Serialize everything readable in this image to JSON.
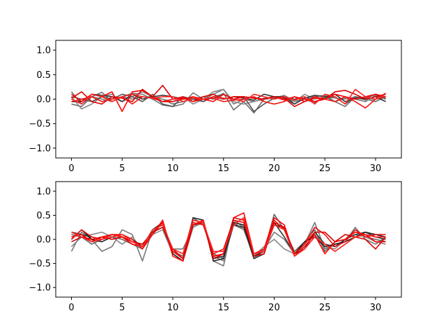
{
  "chart_data": [
    {
      "type": "line",
      "xlim": [
        -1.55,
        32.55
      ],
      "ylim": [
        -1.2,
        1.2
      ],
      "xticks": [
        0,
        5,
        10,
        15,
        20,
        25,
        30
      ],
      "yticks": [
        -1.0,
        -0.5,
        0.0,
        0.5,
        1.0
      ],
      "xtick_labels": [
        "0",
        "5",
        "10",
        "15",
        "20",
        "25",
        "30"
      ],
      "ytick_labels": [
        "−1.0",
        "−0.5",
        "0.0",
        "0.5",
        "1.0"
      ],
      "grid": false,
      "series": [
        {
          "color": "#777777",
          "values": [
            0.15,
            -0.1,
            0.05,
            0.14,
            -0.05,
            0.05,
            0.12,
            0.1,
            0.0,
            -0.12,
            -0.15,
            -0.1,
            0.13,
            0.0,
            0.1,
            0.2,
            -0.1,
            0.0,
            -0.05,
            0.02,
            0.05,
            0.0,
            -0.1,
            0.02,
            0.05,
            0.08,
            -0.05,
            0.02,
            0.0,
            -0.05,
            0.08,
            0.02
          ]
        },
        {
          "color": "#6e6e6e",
          "values": [
            -0.1,
            -0.15,
            0.05,
            0.0,
            -0.05,
            0.05,
            0.0,
            0.05,
            0.02,
            0.0,
            -0.1,
            -0.05,
            0.0,
            0.05,
            0.0,
            0.12,
            -0.22,
            -0.05,
            -0.28,
            0.0,
            0.05,
            0.02,
            -0.05,
            0.0,
            -0.08,
            0.05,
            -0.05,
            -0.15,
            0.05,
            0.0,
            -0.05,
            0.05
          ]
        },
        {
          "color": "#888888",
          "values": [
            0.05,
            -0.2,
            -0.1,
            0.05,
            0.1,
            -0.05,
            0.05,
            0.15,
            0.05,
            0.0,
            -0.05,
            0.05,
            -0.1,
            0.0,
            0.15,
            0.2,
            -0.05,
            -0.1,
            -0.05,
            0.0,
            0.02,
            0.08,
            -0.05,
            0.1,
            0.0,
            0.05,
            0.02,
            0.0,
            0.05,
            -0.02,
            0.0,
            0.05
          ]
        },
        {
          "color": "#333333",
          "values": [
            -0.05,
            -0.05,
            0.1,
            0.08,
            0.05,
            -0.05,
            0.1,
            0.0,
            0.05,
            0.08,
            0.05,
            0.0,
            0.02,
            -0.05,
            0.05,
            0.0,
            0.05,
            0.02,
            -0.02,
            0.1,
            0.05,
            0.05,
            -0.1,
            0.02,
            0.08,
            0.05,
            0.1,
            -0.05,
            0.02,
            0.0,
            0.05,
            -0.05
          ]
        },
        {
          "color": "#555555",
          "values": [
            0.05,
            0.0,
            -0.05,
            0.05,
            0.0,
            0.1,
            0.05,
            -0.05,
            0.1,
            -0.1,
            -0.15,
            0.05,
            0.0,
            -0.05,
            0.05,
            0.1,
            0.0,
            0.05,
            -0.25,
            -0.1,
            0.02,
            0.05,
            0.0,
            0.05,
            -0.05,
            0.02,
            0.05,
            -0.1,
            0.05,
            0.02,
            0.1,
            0.0
          ]
        },
        {
          "color": "#ff0000",
          "values": [
            0.1,
            -0.05,
            0.1,
            0.05,
            0.15,
            -0.25,
            0.15,
            0.18,
            0.05,
            -0.05,
            -0.05,
            0.0,
            0.05,
            0.0,
            -0.05,
            0.1,
            0.0,
            0.05,
            0.02,
            0.0,
            0.05,
            -0.02,
            0.05,
            0.0,
            -0.05,
            0.0,
            0.1,
            0.05,
            0.0,
            0.05,
            0.1,
            0.05
          ]
        },
        {
          "color": "#dd0000",
          "values": [
            0.02,
            0.15,
            -0.05,
            -0.1,
            0.05,
            0.02,
            -0.05,
            0.2,
            0.05,
            0.28,
            0.0,
            0.05,
            -0.05,
            0.05,
            0.1,
            0.0,
            0.05,
            0.05,
            0.02,
            0.0,
            0.05,
            0.02,
            -0.15,
            -0.05,
            0.05,
            0.0,
            0.15,
            0.18,
            0.1,
            0.0,
            0.05,
            0.1
          ]
        },
        {
          "color": "#ee1111",
          "values": [
            -0.05,
            0.0,
            0.05,
            -0.05,
            0.0,
            0.05,
            -0.1,
            0.05,
            0.02,
            -0.05,
            0.0,
            0.02,
            -0.05,
            0.0,
            0.02,
            -0.05,
            -0.02,
            0.0,
            0.05,
            -0.05,
            -0.1,
            -0.05,
            0.05,
            -0.05,
            0.02,
            0.0,
            -0.05,
            0.05,
            -0.05,
            -0.18,
            0.0,
            0.12
          ]
        },
        {
          "color": "#ff2222",
          "values": [
            0.0,
            -0.1,
            0.1,
            0.05,
            -0.05,
            0.05,
            0.1,
            0.05,
            0.02,
            0.05,
            0.05,
            -0.05,
            0.02,
            0.0,
            0.05,
            0.02,
            0.0,
            -0.05,
            0.1,
            0.05,
            0.0,
            0.05,
            -0.02,
            0.05,
            -0.1,
            0.1,
            0.05,
            -0.1,
            0.2,
            0.05,
            0.0,
            0.05
          ]
        }
      ]
    },
    {
      "type": "line",
      "xlim": [
        -1.55,
        32.55
      ],
      "ylim": [
        -1.2,
        1.2
      ],
      "xticks": [
        0,
        5,
        10,
        15,
        20,
        25,
        30
      ],
      "yticks": [
        -1.0,
        -0.5,
        0.0,
        0.5,
        1.0
      ],
      "xtick_labels": [
        "0",
        "5",
        "10",
        "15",
        "20",
        "25",
        "30"
      ],
      "ytick_labels": [
        "−1.0",
        "−0.5",
        "0.0",
        "0.5",
        "1.0"
      ],
      "grid": false,
      "series": [
        {
          "color": "#777777",
          "values": [
            -0.25,
            0.15,
            0.0,
            -0.25,
            -0.15,
            0.2,
            0.1,
            -0.45,
            0.2,
            0.3,
            -0.2,
            -0.2,
            0.25,
            0.4,
            -0.45,
            -0.55,
            0.4,
            0.25,
            -0.4,
            -0.2,
            0.15,
            0.0,
            -0.3,
            -0.1,
            0.35,
            -0.2,
            -0.1,
            -0.05,
            0.25,
            0.0,
            -0.1,
            0.05
          ]
        },
        {
          "color": "#666666",
          "values": [
            0.1,
            0.05,
            -0.1,
            0.0,
            0.05,
            0.0,
            -0.1,
            -0.2,
            0.15,
            0.35,
            -0.25,
            -0.35,
            0.45,
            0.3,
            -0.3,
            -0.4,
            0.35,
            0.2,
            -0.3,
            -0.25,
            0.52,
            0.2,
            -0.25,
            -0.05,
            0.2,
            -0.25,
            -0.05,
            0.0,
            0.2,
            0.05,
            0.0,
            -0.05
          ]
        },
        {
          "color": "#888888",
          "values": [
            -0.15,
            0.05,
            0.1,
            0.15,
            0.05,
            -0.1,
            0.05,
            -0.2,
            0.1,
            0.2,
            -0.3,
            -0.45,
            0.25,
            0.35,
            -0.35,
            -0.45,
            0.3,
            0.2,
            -0.35,
            -0.15,
            0.0,
            -0.2,
            -0.3,
            -0.15,
            0.1,
            -0.15,
            -0.2,
            0.0,
            0.1,
            0.05,
            -0.05,
            -0.1
          ]
        },
        {
          "color": "#333333",
          "values": [
            0.15,
            0.1,
            0.05,
            0.0,
            0.1,
            0.05,
            -0.05,
            -0.1,
            0.15,
            0.25,
            -0.25,
            -0.4,
            0.4,
            0.35,
            -0.4,
            -0.35,
            0.3,
            0.25,
            -0.4,
            -0.3,
            0.35,
            0.05,
            -0.3,
            -0.2,
            0.15,
            -0.1,
            -0.15,
            0.0,
            0.1,
            0.15,
            0.05,
            0.0
          ]
        },
        {
          "color": "#222222",
          "values": [
            0.0,
            0.2,
            0.0,
            -0.05,
            0.05,
            0.1,
            0.0,
            -0.15,
            0.2,
            0.35,
            -0.3,
            -0.45,
            0.45,
            0.4,
            -0.45,
            -0.4,
            0.35,
            0.3,
            -0.35,
            -0.25,
            0.3,
            0.25,
            -0.3,
            -0.05,
            0.05,
            -0.15,
            -0.1,
            -0.05,
            0.05,
            0.15,
            0.1,
            0.05
          ]
        },
        {
          "color": "#ff0000",
          "values": [
            0.05,
            0.1,
            -0.05,
            0.05,
            0.1,
            0.05,
            -0.1,
            -0.15,
            0.1,
            0.4,
            -0.35,
            -0.45,
            0.3,
            0.4,
            -0.35,
            -0.3,
            0.45,
            0.55,
            -0.3,
            -0.2,
            0.45,
            0.3,
            -0.35,
            -0.15,
            0.1,
            -0.3,
            -0.05,
            0.0,
            0.15,
            0.1,
            -0.05,
            -0.05
          ]
        },
        {
          "color": "#ee1111",
          "values": [
            0.0,
            0.2,
            0.05,
            0.0,
            0.1,
            0.1,
            0.0,
            -0.2,
            0.1,
            0.35,
            -0.25,
            -0.4,
            0.35,
            0.3,
            -0.3,
            -0.2,
            0.4,
            0.35,
            -0.3,
            -0.25,
            0.4,
            0.2,
            -0.3,
            -0.1,
            0.25,
            0.1,
            -0.15,
            -0.05,
            0.2,
            0.05,
            0.1,
            0.1
          ]
        },
        {
          "color": "#dd0000",
          "values": [
            -0.05,
            0.05,
            0.0,
            0.05,
            0.0,
            0.05,
            -0.05,
            -0.1,
            0.15,
            0.25,
            -0.2,
            -0.4,
            0.3,
            0.35,
            -0.4,
            -0.3,
            0.45,
            0.4,
            -0.35,
            -0.3,
            0.35,
            0.25,
            -0.3,
            -0.1,
            0.15,
            0.15,
            -0.05,
            0.1,
            0.05,
            0.0,
            -0.2,
            0.05
          ]
        },
        {
          "color": "#ff2222",
          "values": [
            0.15,
            0.05,
            -0.05,
            0.0,
            0.05,
            0.1,
            -0.05,
            -0.15,
            0.2,
            0.3,
            -0.2,
            -0.3,
            0.4,
            0.35,
            -0.25,
            -0.25,
            0.3,
            0.45,
            -0.3,
            -0.25,
            0.3,
            0.2,
            -0.35,
            -0.2,
            0.05,
            -0.1,
            -0.25,
            -0.1,
            0.05,
            0.1,
            0.05,
            0.05
          ]
        }
      ]
    }
  ]
}
